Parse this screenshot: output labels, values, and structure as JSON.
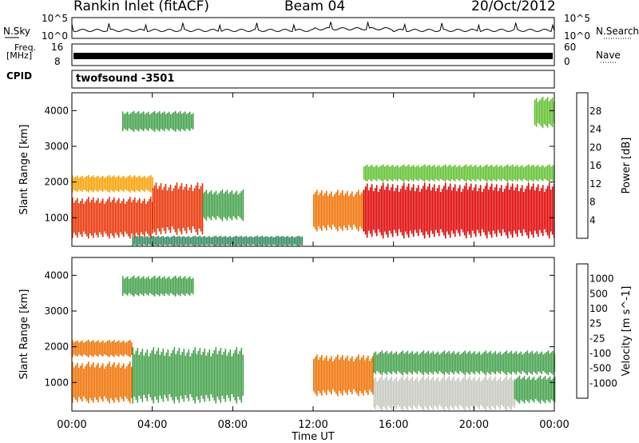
{
  "header": {
    "station": "Rankin Inlet (fitACF)",
    "beam": "Beam 04",
    "date": "20/Oct/2012"
  },
  "panels": {
    "nsky_label": "N.Sky",
    "nsky_ticks": [
      "10^5",
      "10^0"
    ],
    "nsearch_label": "N.Search",
    "freq_label_1": "Freq.",
    "freq_label_2": "[MHz]",
    "freq_ticks": [
      "16",
      "8"
    ],
    "nave_ticks": [
      "60",
      "0"
    ],
    "nave_label": "Nave",
    "cpid_label": "CPID",
    "cpid_value": "twofsound -3501"
  },
  "chart_data": [
    {
      "type": "heatmap",
      "title": "Power",
      "ylabel": "Slant Range [km]",
      "xlabel": "Time UT",
      "x_ticks": [
        "00:00",
        "04:00",
        "08:00",
        "12:00",
        "16:00",
        "20:00",
        "00:00"
      ],
      "y_ticks": [
        1000,
        2000,
        3000,
        4000
      ],
      "ylim": [
        200,
        4500
      ],
      "colorbar": {
        "label": "Power [dB]",
        "ticks": [
          4,
          8,
          12,
          16,
          20,
          24,
          28
        ],
        "colors": [
          "#0000ff",
          "#2050a0",
          "#308860",
          "#40a048",
          "#60c030",
          "#b0c820",
          "#f8a000",
          "#f07000",
          "#e83000",
          "#e00000"
        ]
      },
      "regions": [
        {
          "t0": 0.0,
          "t1": 4.0,
          "r0": 400,
          "r1": 1600,
          "value": 26
        },
        {
          "t0": 0.0,
          "t1": 4.0,
          "r0": 1700,
          "r1": 2200,
          "value": 18
        },
        {
          "t0": 4.0,
          "t1": 6.5,
          "r0": 500,
          "r1": 2000,
          "value": 24
        },
        {
          "t0": 6.5,
          "t1": 8.5,
          "r0": 900,
          "r1": 1800,
          "value": 10
        },
        {
          "t0": 3.0,
          "t1": 11.5,
          "r0": 200,
          "r1": 500,
          "value": 6
        },
        {
          "t0": 12.0,
          "t1": 14.5,
          "r0": 600,
          "r1": 1800,
          "value": 22
        },
        {
          "t0": 14.5,
          "t1": 24.0,
          "r0": 400,
          "r1": 2000,
          "value": 27
        },
        {
          "t0": 14.5,
          "t1": 24.0,
          "r0": 2000,
          "r1": 2500,
          "value": 14
        },
        {
          "t0": 2.5,
          "t1": 6.0,
          "r0": 3400,
          "r1": 4000,
          "value": 10
        },
        {
          "t0": 23.0,
          "t1": 24.0,
          "r0": 3500,
          "r1": 4400,
          "value": 14
        }
      ]
    },
    {
      "type": "heatmap",
      "title": "Velocity",
      "ylabel": "Slant Range [km]",
      "xlabel": "Time UT",
      "x_ticks": [
        "00:00",
        "04:00",
        "08:00",
        "12:00",
        "16:00",
        "20:00",
        "00:00"
      ],
      "y_ticks": [
        1000,
        2000,
        3000,
        4000
      ],
      "ylim": [
        200,
        4500
      ],
      "colorbar": {
        "label": "Velocity [m s^-1]",
        "ticks": [
          1000,
          500,
          100,
          25,
          -25,
          -100,
          -500,
          -1000
        ],
        "colors": [
          "#2040c0",
          "#3070a0",
          "#308860",
          "#40a048",
          "#60c030",
          "#c8c8c0",
          "#f8a000",
          "#f07000",
          "#e83000",
          "#e00000"
        ]
      },
      "regions": [
        {
          "t0": 0.0,
          "t1": 3.0,
          "r0": 400,
          "r1": 1600,
          "value": -150
        },
        {
          "t0": 0.0,
          "t1": 3.0,
          "r0": 1700,
          "r1": 2200,
          "value": -200
        },
        {
          "t0": 3.0,
          "t1": 8.5,
          "r0": 400,
          "r1": 2000,
          "value": 300
        },
        {
          "t0": 12.0,
          "t1": 15.0,
          "r0": 600,
          "r1": 1800,
          "value": -200
        },
        {
          "t0": 15.0,
          "t1": 22.0,
          "r0": 200,
          "r1": 1200,
          "value": 0
        },
        {
          "t0": 15.0,
          "t1": 24.0,
          "r0": 1200,
          "r1": 1900,
          "value": 120
        },
        {
          "t0": 22.0,
          "t1": 24.0,
          "r0": 400,
          "r1": 1200,
          "value": 200
        },
        {
          "t0": 2.5,
          "t1": 6.0,
          "r0": 3400,
          "r1": 4000,
          "value": 200
        }
      ]
    }
  ],
  "colors": {
    "axis": "#000000",
    "trace": "#000000"
  }
}
